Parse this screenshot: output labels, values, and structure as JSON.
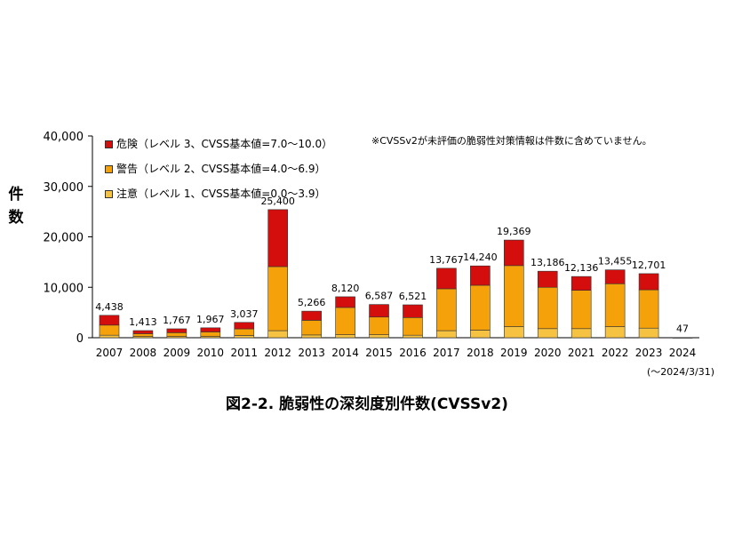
{
  "chart_data": {
    "type": "bar",
    "stacked": true,
    "title": "図2-2. 脆弱性の深刻度別件数(CVSSv2)",
    "ylabel": "件数",
    "xlabel": "",
    "ylim": [
      0,
      40000
    ],
    "yticks": [
      "0",
      "10,000",
      "20,000",
      "30,000",
      "40,000"
    ],
    "ytick_values": [
      0,
      10000,
      20000,
      30000,
      40000
    ],
    "categories": [
      "2007",
      "2008",
      "2009",
      "2010",
      "2011",
      "2012",
      "2013",
      "2014",
      "2015",
      "2016",
      "2017",
      "2018",
      "2019",
      "2020",
      "2021",
      "2022",
      "2023",
      "2024"
    ],
    "series": [
      {
        "name": "注意（レベル 1、CVSS基本値=0.0～3.9）",
        "color": "#f5c242",
        "values": [
          500,
          250,
          250,
          250,
          450,
          1400,
          550,
          600,
          600,
          500,
          1400,
          1500,
          2200,
          1800,
          1800,
          2200,
          1900,
          5
        ]
      },
      {
        "name": "警告（レベル 2、CVSS基本値=4.0～6.9）",
        "color": "#f5a20a",
        "values": [
          2000,
          550,
          750,
          900,
          1300,
          12700,
          2900,
          5400,
          3500,
          3500,
          8300,
          8900,
          12100,
          8200,
          7600,
          8500,
          7600,
          30
        ]
      },
      {
        "name": "危険（レベル 3、CVSS基本値=7.0～10.0）",
        "color": "#d40d0d",
        "values": [
          1938,
          613,
          767,
          817,
          1287,
          11300,
          1816,
          2120,
          2487,
          2521,
          4067,
          3840,
          5069,
          3186,
          2736,
          2755,
          3201,
          12
        ]
      }
    ],
    "totals": [
      "4,438",
      "1,413",
      "1,767",
      "1,967",
      "3,037",
      "25,400",
      "5,266",
      "8,120",
      "6,587",
      "6,521",
      "13,767",
      "14,240",
      "19,369",
      "13,186",
      "12,136",
      "13,455",
      "12,701",
      "47"
    ],
    "totals_values": [
      4438,
      1413,
      1767,
      1967,
      3037,
      25400,
      5266,
      8120,
      6587,
      6521,
      13767,
      14240,
      19369,
      13186,
      12136,
      13455,
      12701,
      47
    ],
    "legend_position": "top-left",
    "grid": false,
    "annotation": "※CVSSv2が未評価の脆弱性対策情報は件数に含めていません。",
    "footnote": "(～2024/3/31)"
  },
  "legend": [
    {
      "label": "危険（レベル 3、CVSS基本値=7.0～10.0）",
      "color": "#d40d0d"
    },
    {
      "label": "警告（レベル 2、CVSS基本値=4.0～6.9）",
      "color": "#f5a20a"
    },
    {
      "label": "注意（レベル 1、CVSS基本値=0.0～3.9）",
      "color": "#f5c242"
    }
  ],
  "ylabel_chars": [
    "件",
    "数"
  ]
}
